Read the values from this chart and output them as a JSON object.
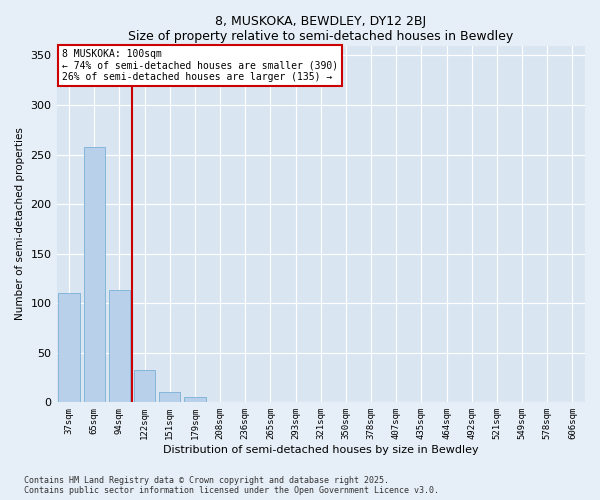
{
  "title": "8, MUSKOKA, BEWDLEY, DY12 2BJ",
  "subtitle": "Size of property relative to semi-detached houses in Bewdley",
  "xlabel": "Distribution of semi-detached houses by size in Bewdley",
  "ylabel": "Number of semi-detached properties",
  "bar_color": "#b8d0ea",
  "bar_edge_color": "#7aafd4",
  "annotation_title": "8 MUSKOKA: 100sqm",
  "annotation_line1": "← 74% of semi-detached houses are smaller (390)",
  "annotation_line2": "26% of semi-detached houses are larger (135) →",
  "vline_color": "#cc0000",
  "categories": [
    "37sqm",
    "65sqm",
    "94sqm",
    "122sqm",
    "151sqm",
    "179sqm",
    "208sqm",
    "236sqm",
    "265sqm",
    "293sqm",
    "321sqm",
    "350sqm",
    "378sqm",
    "407sqm",
    "435sqm",
    "464sqm",
    "492sqm",
    "521sqm",
    "549sqm",
    "578sqm",
    "606sqm"
  ],
  "values": [
    110,
    258,
    113,
    33,
    10,
    5,
    0,
    0,
    0,
    0,
    0,
    0,
    0,
    0,
    0,
    0,
    0,
    0,
    0,
    0,
    0
  ],
  "ylim": [
    0,
    360
  ],
  "yticks": [
    0,
    50,
    100,
    150,
    200,
    250,
    300,
    350
  ],
  "footer1": "Contains HM Land Registry data © Crown copyright and database right 2025.",
  "footer2": "Contains public sector information licensed under the Open Government Licence v3.0.",
  "background_color": "#e6eef7",
  "plot_bg_color": "#d9e6f2",
  "grid_color": "#ffffff"
}
